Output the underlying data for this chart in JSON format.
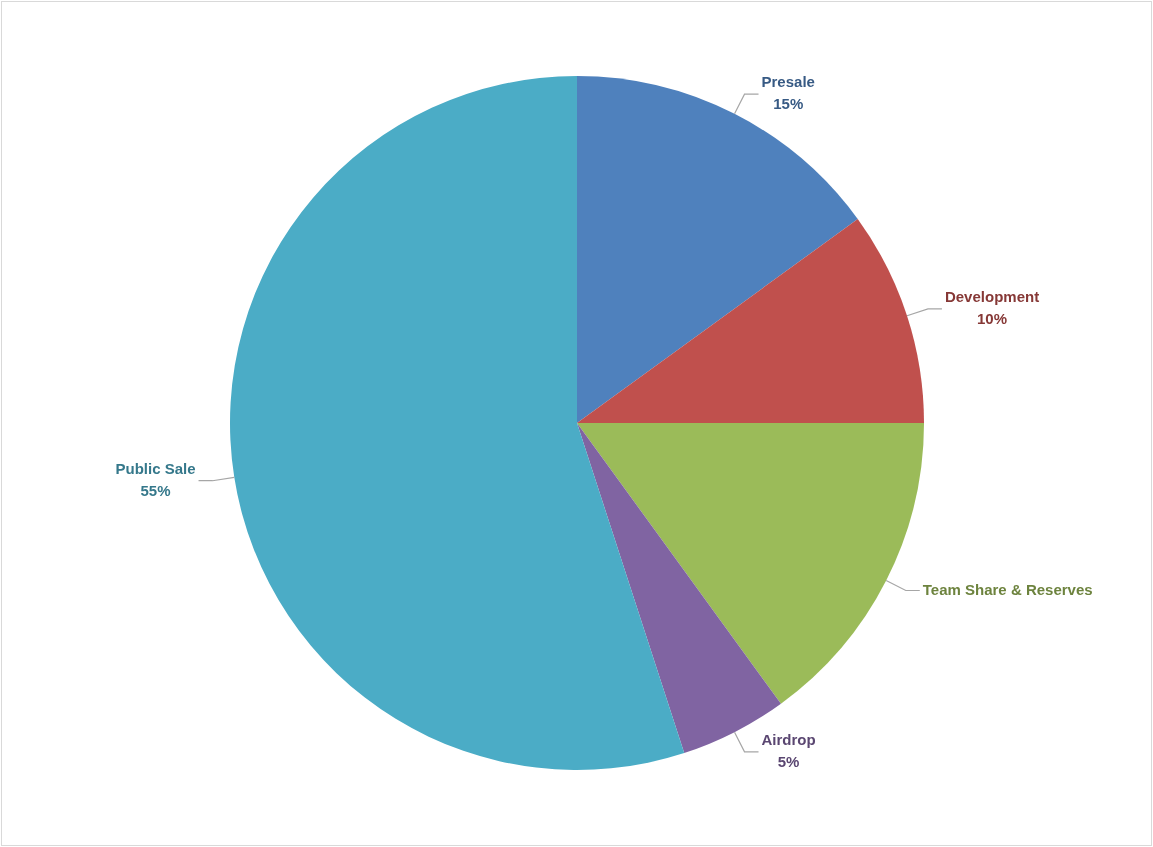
{
  "chart_data": {
    "type": "pie",
    "categories": [
      "Presale",
      "Development",
      "Team Share & Reserves",
      "Airdrop",
      "Public Sale"
    ],
    "values": [
      15,
      10,
      15,
      5,
      55
    ],
    "colors": [
      "#4f81bd",
      "#c0504d",
      "#9bbb59",
      "#8064a2",
      "#4bacc6"
    ],
    "value_labels": [
      "15%",
      "10%",
      null,
      "5%",
      "55%"
    ],
    "legend": false
  }
}
